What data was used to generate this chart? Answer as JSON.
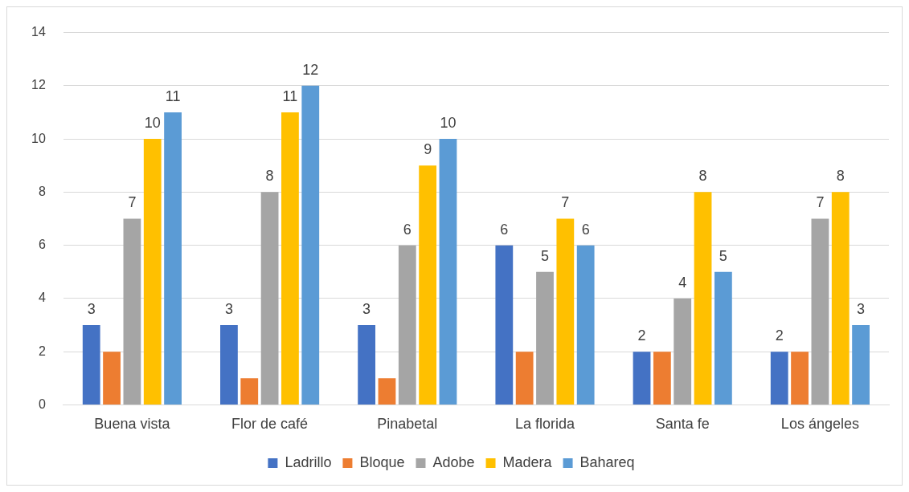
{
  "chart_data": {
    "type": "bar",
    "categories": [
      "Buena vista",
      "Flor de café",
      "Pinabetal",
      "La florida",
      "Santa fe",
      "Los ángeles"
    ],
    "series": [
      {
        "name": "Ladrillo",
        "color": "#4472c4",
        "values": [
          3,
          3,
          3,
          6,
          2,
          2
        ],
        "value_labels": [
          "3",
          "3",
          "3",
          "6",
          "2",
          "2"
        ]
      },
      {
        "name": "Bloque",
        "color": "#ed7d31",
        "values": [
          2,
          1,
          1,
          2,
          2,
          2
        ]
      },
      {
        "name": "Adobe",
        "color": "#a5a5a5",
        "values": [
          7,
          8,
          6,
          5,
          4,
          7
        ],
        "value_labels": [
          "7",
          "8",
          "6",
          "5",
          "4",
          "7"
        ]
      },
      {
        "name": "Madera",
        "color": "#ffc000",
        "values": [
          10,
          11,
          9,
          7,
          8,
          8
        ],
        "value_labels": [
          "10",
          "11",
          "9",
          "7",
          "8",
          "8"
        ]
      },
      {
        "name": "Bahareq",
        "color": "#5b9bd5",
        "values": [
          11,
          12,
          10,
          6,
          5,
          3
        ],
        "value_labels": [
          "11",
          "12",
          "10",
          "6",
          "5",
          "3"
        ]
      }
    ],
    "ylim": [
      0,
      14
    ],
    "yticks": [
      0,
      2,
      4,
      6,
      8,
      10,
      12,
      14
    ],
    "grid": "y",
    "legend": "bottom"
  }
}
